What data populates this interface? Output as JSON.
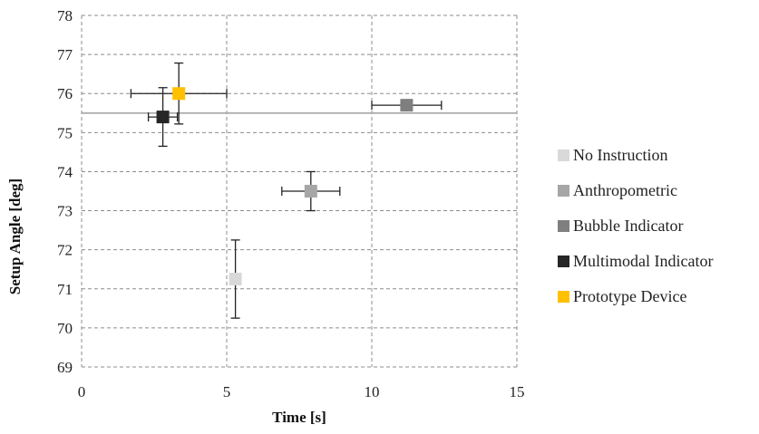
{
  "chart_data": {
    "type": "scatter",
    "title": "",
    "xlabel": "Time [s]",
    "ylabel": "Setup Angle [deg]",
    "xlim": [
      0,
      15
    ],
    "ylim": [
      69,
      78
    ],
    "xticks": [
      0,
      5,
      10,
      15
    ],
    "yticks": [
      69,
      70,
      71,
      72,
      73,
      74,
      75,
      76,
      77,
      78
    ],
    "grid": true,
    "grid_style": "dashed",
    "legend_position": "right",
    "reference_line": {
      "y": 75.5,
      "color": "#a6a6a6"
    },
    "series": [
      {
        "name": "No Instruction",
        "color": "#d9d9d9",
        "x": 5.3,
        "y": 71.25,
        "xerr": 0.1,
        "yerr": 1.0
      },
      {
        "name": "Anthropometric",
        "color": "#a6a6a6",
        "x": 7.9,
        "y": 73.5,
        "xerr": 1.0,
        "yerr": 0.5
      },
      {
        "name": "Bubble Indicator",
        "color": "#7f7f7f",
        "x": 11.2,
        "y": 75.7,
        "xerr": 1.2,
        "yerr": 0.05
      },
      {
        "name": "Multimodal Indicator",
        "color": "#262626",
        "x": 2.8,
        "y": 75.4,
        "xerr": 0.5,
        "yerr": 0.75
      },
      {
        "name": "Prototype Device",
        "color": "#ffc000",
        "x": 3.35,
        "y": 76.0,
        "xerr": 1.65,
        "yerr": 0.78
      }
    ]
  }
}
